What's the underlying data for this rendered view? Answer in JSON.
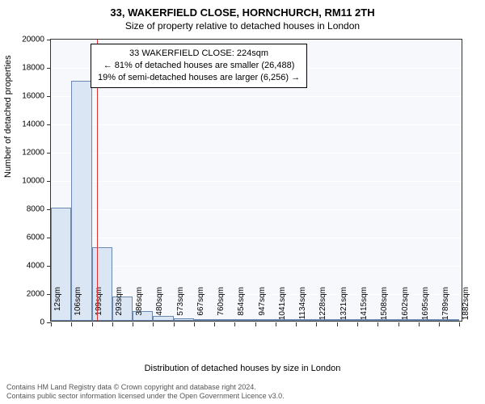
{
  "title_main": "33, WAKERFIELD CLOSE, HORNCHURCH, RM11 2TH",
  "title_sub": "Size of property relative to detached houses in London",
  "y_axis_label": "Number of detached properties",
  "x_axis_label": "Distribution of detached houses by size in London",
  "annotation": {
    "line1": "33 WAKERFIELD CLOSE: 224sqm",
    "line2": "← 81% of detached houses are smaller (26,488)",
    "line3": "19% of semi-detached houses are larger (6,256) →"
  },
  "footer": {
    "line1": "Contains HM Land Registry data © Crown copyright and database right 2024.",
    "line2": "Contains public sector information licensed under the Open Government Licence v3.0."
  },
  "chart": {
    "type": "histogram",
    "background_color": "#f6f8fb",
    "grid_color": "#ffffff",
    "bar_fill": "#dbe6f4",
    "bar_border": "#6b88b0",
    "marker_color": "#e03030",
    "marker_x": 224,
    "x_min": 12,
    "x_max": 1900,
    "y_min": 0,
    "y_max": 20000,
    "y_ticks": [
      0,
      2000,
      4000,
      6000,
      8000,
      10000,
      12000,
      14000,
      16000,
      18000,
      20000
    ],
    "x_ticks": [
      12,
      106,
      199,
      293,
      386,
      480,
      573,
      667,
      760,
      854,
      947,
      1041,
      1134,
      1228,
      1321,
      1415,
      1508,
      1602,
      1695,
      1789,
      1882
    ],
    "x_tick_suffix": "sqm",
    "bars": [
      {
        "x0": 12,
        "x1": 106,
        "y": 8000
      },
      {
        "x0": 106,
        "x1": 199,
        "y": 17000
      },
      {
        "x0": 199,
        "x1": 293,
        "y": 5200
      },
      {
        "x0": 293,
        "x1": 386,
        "y": 1700
      },
      {
        "x0": 386,
        "x1": 480,
        "y": 700
      },
      {
        "x0": 480,
        "x1": 573,
        "y": 350
      },
      {
        "x0": 573,
        "x1": 667,
        "y": 200
      },
      {
        "x0": 667,
        "x1": 760,
        "y": 130
      },
      {
        "x0": 760,
        "x1": 854,
        "y": 90
      },
      {
        "x0": 854,
        "x1": 947,
        "y": 60
      },
      {
        "x0": 947,
        "x1": 1041,
        "y": 40
      },
      {
        "x0": 1041,
        "x1": 1134,
        "y": 30
      },
      {
        "x0": 1134,
        "x1": 1228,
        "y": 20
      },
      {
        "x0": 1228,
        "x1": 1321,
        "y": 15
      },
      {
        "x0": 1321,
        "x1": 1415,
        "y": 12
      },
      {
        "x0": 1415,
        "x1": 1508,
        "y": 8
      },
      {
        "x0": 1508,
        "x1": 1602,
        "y": 6
      },
      {
        "x0": 1602,
        "x1": 1695,
        "y": 5
      },
      {
        "x0": 1695,
        "x1": 1789,
        "y": 4
      },
      {
        "x0": 1789,
        "x1": 1882,
        "y": 3
      }
    ],
    "title_fontsize": 13,
    "subtitle_fontsize": 12,
    "axis_label_fontsize": 11,
    "tick_fontsize": 10,
    "annotation_fontsize": 11
  }
}
